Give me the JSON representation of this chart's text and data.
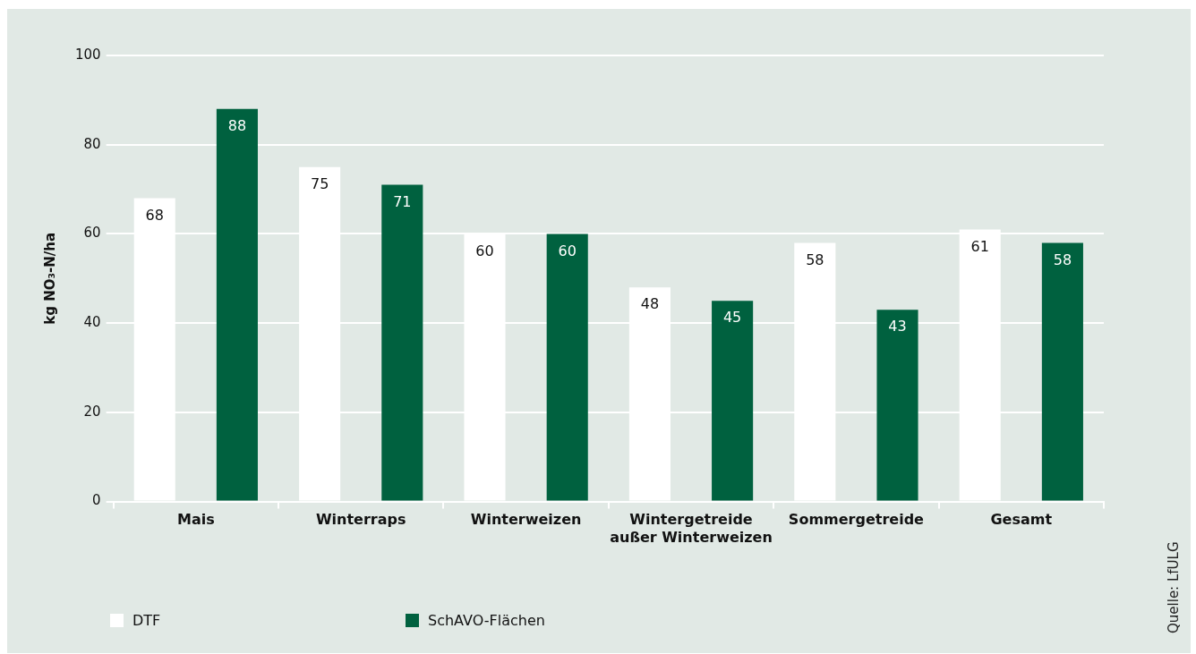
{
  "chart_data": {
    "type": "bar",
    "ylabel": "kg NO₃-N/ha",
    "categories": [
      "Mais",
      "Winterraps",
      "Winterweizen",
      "Wintergetreide\naußer Winterweizen",
      "Sommergetreide",
      "Gesamt"
    ],
    "series": [
      {
        "name": "DTF",
        "color": "#ffffff",
        "values": [
          68,
          75,
          60,
          48,
          58,
          61
        ]
      },
      {
        "name": "SchAVO-Flächen",
        "color": "#00613f",
        "values": [
          88,
          71,
          60,
          45,
          43,
          58
        ]
      }
    ],
    "ylim": [
      0,
      100
    ],
    "yticks": [
      0,
      20,
      40,
      60,
      80,
      100
    ],
    "grid": "y",
    "legend": "bottom left",
    "data_labels": true,
    "annotations": [
      "Quelle: LfULG"
    ]
  }
}
